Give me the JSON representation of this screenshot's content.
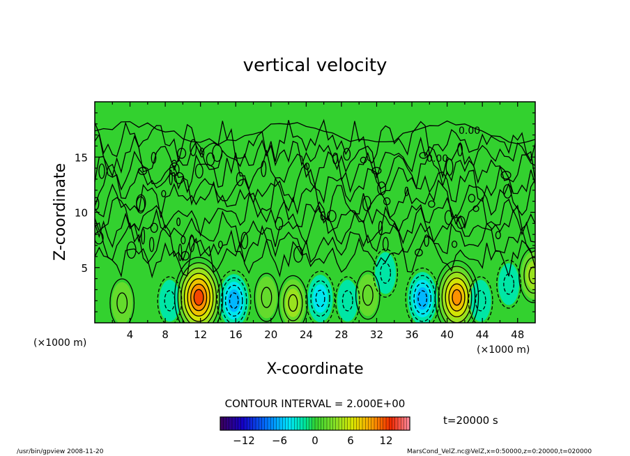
{
  "chart_data": {
    "type": "heatmap",
    "title": "vertical velocity",
    "xlabel": "X-coordinate",
    "ylabel": "Z-coordinate",
    "x_unit_left": "(×1000 m)",
    "x_unit_right": "(×1000 m)",
    "xlim": [
      0,
      50
    ],
    "ylim": [
      0,
      20
    ],
    "x_ticks": [
      4,
      8,
      12,
      16,
      20,
      24,
      28,
      32,
      36,
      40,
      44,
      48
    ],
    "y_ticks": [
      5,
      10,
      15
    ],
    "contour_interval_text": "CONTOUR INTERVAL = 2.000E+00",
    "contour_labels": [
      "0.00",
      "0.00"
    ],
    "time_label": "t=20000 s",
    "colorbar": {
      "ticks": [
        -12,
        -6,
        0,
        6,
        12
      ],
      "range": [
        -16,
        16
      ]
    },
    "features": [
      {
        "x": 3.1,
        "z": 1.8,
        "w": 2.0
      },
      {
        "x": 8.5,
        "z": 2.0,
        "w": -2.0
      },
      {
        "x": 11.8,
        "z": 2.3,
        "w": 12.0
      },
      {
        "x": 15.8,
        "z": 2.0,
        "w": -6.0
      },
      {
        "x": 19.5,
        "z": 2.3,
        "w": 2.0
      },
      {
        "x": 22.5,
        "z": 1.8,
        "w": 4.0
      },
      {
        "x": 25.6,
        "z": 2.2,
        "w": -4.0
      },
      {
        "x": 28.7,
        "z": 2.0,
        "w": -2.0
      },
      {
        "x": 31.0,
        "z": 2.5,
        "w": 2.0
      },
      {
        "x": 33.0,
        "z": 4.5,
        "w": -2.0
      },
      {
        "x": 37.2,
        "z": 2.2,
        "w": -6.0
      },
      {
        "x": 41.1,
        "z": 2.3,
        "w": 10.0
      },
      {
        "x": 43.8,
        "z": 2.0,
        "w": -2.0
      },
      {
        "x": 47.0,
        "z": 3.5,
        "w": -2.0
      },
      {
        "x": 49.8,
        "z": 4.3,
        "w": 4.0
      }
    ]
  },
  "footer": {
    "program": "/usr/bin/gpview   2008-11-20",
    "source": "MarsCond_VelZ.nc@VelZ,x=0:50000,z=0:20000,t=020000"
  }
}
